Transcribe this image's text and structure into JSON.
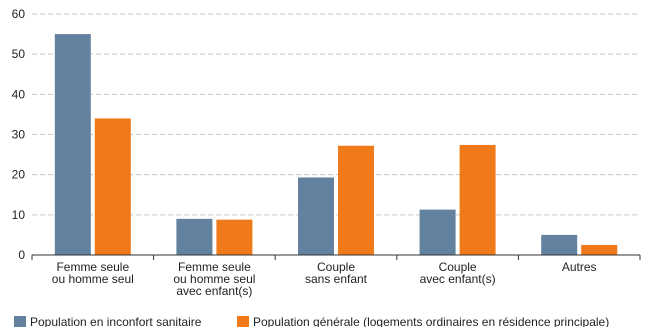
{
  "chart_data": {
    "type": "bar",
    "categories": [
      [
        "Femme seule",
        "ou homme seul"
      ],
      [
        "Femme seule",
        "ou homme seul",
        "avec enfant(s)"
      ],
      [
        "Couple",
        "sans enfant"
      ],
      [
        "Couple",
        "avec enfant(s)"
      ],
      [
        "Autres"
      ]
    ],
    "series": [
      {
        "name": "Population en inconfort sanitaire",
        "values": [
          55,
          9,
          19.3,
          11.3,
          5
        ],
        "color": "#6282a0"
      },
      {
        "name": "Population générale (logements ordinaires en résidence principale)",
        "values": [
          34,
          8.8,
          27.2,
          27.4,
          2.5
        ],
        "color": "#f07a1a"
      }
    ],
    "y_ticks": [
      0,
      10,
      20,
      30,
      40,
      50,
      60
    ],
    "ylim": [
      0,
      60
    ],
    "grid": true,
    "legend_position": "bottom-left"
  }
}
